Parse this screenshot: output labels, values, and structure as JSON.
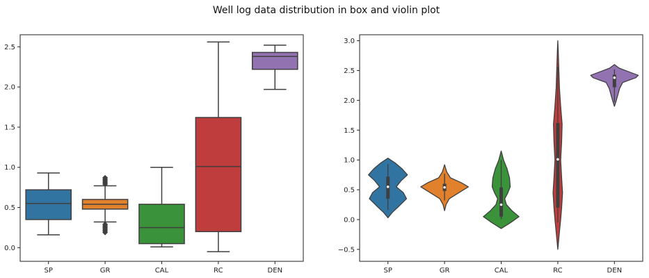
{
  "suptitle": "Well log data distribution in box and violin plot",
  "chart_data": [
    {
      "type": "box",
      "categories": [
        "SP",
        "GR",
        "CAL",
        "RC",
        "DEN"
      ],
      "ylim": [
        -0.17,
        2.65
      ],
      "yticks": [
        "0.0",
        "0.5",
        "1.0",
        "1.5",
        "2.0",
        "2.5"
      ],
      "grid": false,
      "colors": [
        "#3274a1",
        "#e1812c",
        "#3a923a",
        "#c03d3e",
        "#9372b2"
      ],
      "boxes": [
        {
          "category": "SP",
          "whisker_low": 0.16,
          "q1": 0.35,
          "median": 0.55,
          "q3": 0.72,
          "whisker_high": 0.93,
          "outliers": []
        },
        {
          "category": "GR",
          "whisker_low": 0.32,
          "q1": 0.48,
          "median": 0.54,
          "q3": 0.6,
          "whisker_high": 0.77,
          "outliers": [
            0.19,
            0.21,
            0.23,
            0.25,
            0.27,
            0.29,
            0.79,
            0.81,
            0.83,
            0.85,
            0.87
          ]
        },
        {
          "category": "CAL",
          "whisker_low": 0.01,
          "q1": 0.05,
          "median": 0.25,
          "q3": 0.54,
          "whisker_high": 1.0,
          "outliers": []
        },
        {
          "category": "RC",
          "whisker_low": -0.05,
          "q1": 0.2,
          "median": 1.01,
          "q3": 1.62,
          "whisker_high": 2.56,
          "outliers": []
        },
        {
          "category": "DEN",
          "whisker_low": 1.97,
          "q1": 2.22,
          "median": 2.38,
          "q3": 2.43,
          "whisker_high": 2.52,
          "outliers": []
        }
      ]
    },
    {
      "type": "violin",
      "categories": [
        "SP",
        "GR",
        "CAL",
        "RC",
        "DEN"
      ],
      "ylim": [
        -0.7,
        3.1
      ],
      "yticks": [
        "−0.5",
        "0.0",
        "0.5",
        "1.0",
        "1.5",
        "2.0",
        "2.5",
        "3.0"
      ],
      "grid": false,
      "colors": [
        "#3274a1",
        "#e1812c",
        "#3a923a",
        "#c03d3e",
        "#9372b2"
      ],
      "violins": [
        {
          "category": "SP",
          "q1": 0.35,
          "median": 0.55,
          "q3": 0.72,
          "whisker_low": 0.16,
          "whisker_high": 0.93,
          "profile": [
            [
              0.03,
              0.0
            ],
            [
              0.12,
              0.18
            ],
            [
              0.22,
              0.45
            ],
            [
              0.35,
              0.78
            ],
            [
              0.45,
              0.65
            ],
            [
              0.55,
              0.35
            ],
            [
              0.65,
              0.55
            ],
            [
              0.75,
              0.82
            ],
            [
              0.85,
              0.6
            ],
            [
              0.95,
              0.3
            ],
            [
              1.03,
              0.0
            ]
          ]
        },
        {
          "category": "GR",
          "q1": 0.48,
          "median": 0.54,
          "q3": 0.6,
          "whisker_low": 0.32,
          "whisker_high": 0.77,
          "profile": [
            [
              0.15,
              0.0
            ],
            [
              0.25,
              0.06
            ],
            [
              0.35,
              0.2
            ],
            [
              0.45,
              0.6
            ],
            [
              0.55,
              1.0
            ],
            [
              0.62,
              0.7
            ],
            [
              0.7,
              0.25
            ],
            [
              0.8,
              0.09
            ],
            [
              0.92,
              0.0
            ]
          ]
        },
        {
          "category": "CAL",
          "q1": 0.05,
          "median": 0.25,
          "q3": 0.54,
          "whisker_low": 0.01,
          "whisker_high": 1.0,
          "profile": [
            [
              -0.15,
              0.0
            ],
            [
              -0.05,
              0.4
            ],
            [
              0.05,
              0.75
            ],
            [
              0.15,
              0.45
            ],
            [
              0.25,
              0.22
            ],
            [
              0.35,
              0.15
            ],
            [
              0.45,
              0.28
            ],
            [
              0.55,
              0.38
            ],
            [
              0.7,
              0.35
            ],
            [
              0.85,
              0.25
            ],
            [
              1.0,
              0.1
            ],
            [
              1.15,
              0.0
            ]
          ]
        },
        {
          "category": "RC",
          "q1": 0.2,
          "median": 1.01,
          "q3": 1.62,
          "whisker_low": -0.05,
          "whisker_high": 2.56,
          "profile": [
            [
              -0.5,
              0.0
            ],
            [
              -0.2,
              0.07
            ],
            [
              0.0,
              0.12
            ],
            [
              0.2,
              0.16
            ],
            [
              0.45,
              0.2
            ],
            [
              0.7,
              0.16
            ],
            [
              1.0,
              0.12
            ],
            [
              1.3,
              0.16
            ],
            [
              1.6,
              0.18
            ],
            [
              1.9,
              0.12
            ],
            [
              2.2,
              0.07
            ],
            [
              2.55,
              0.04
            ],
            [
              2.8,
              0.02
            ],
            [
              3.0,
              0.0
            ]
          ]
        },
        {
          "category": "DEN",
          "q1": 2.22,
          "median": 2.38,
          "q3": 2.43,
          "whisker_low": 1.97,
          "whisker_high": 2.52,
          "profile": [
            [
              1.9,
              0.0
            ],
            [
              2.0,
              0.08
            ],
            [
              2.1,
              0.15
            ],
            [
              2.2,
              0.22
            ],
            [
              2.3,
              0.35
            ],
            [
              2.38,
              0.9
            ],
            [
              2.42,
              1.0
            ],
            [
              2.48,
              0.6
            ],
            [
              2.54,
              0.2
            ],
            [
              2.6,
              0.0
            ]
          ]
        }
      ]
    }
  ]
}
